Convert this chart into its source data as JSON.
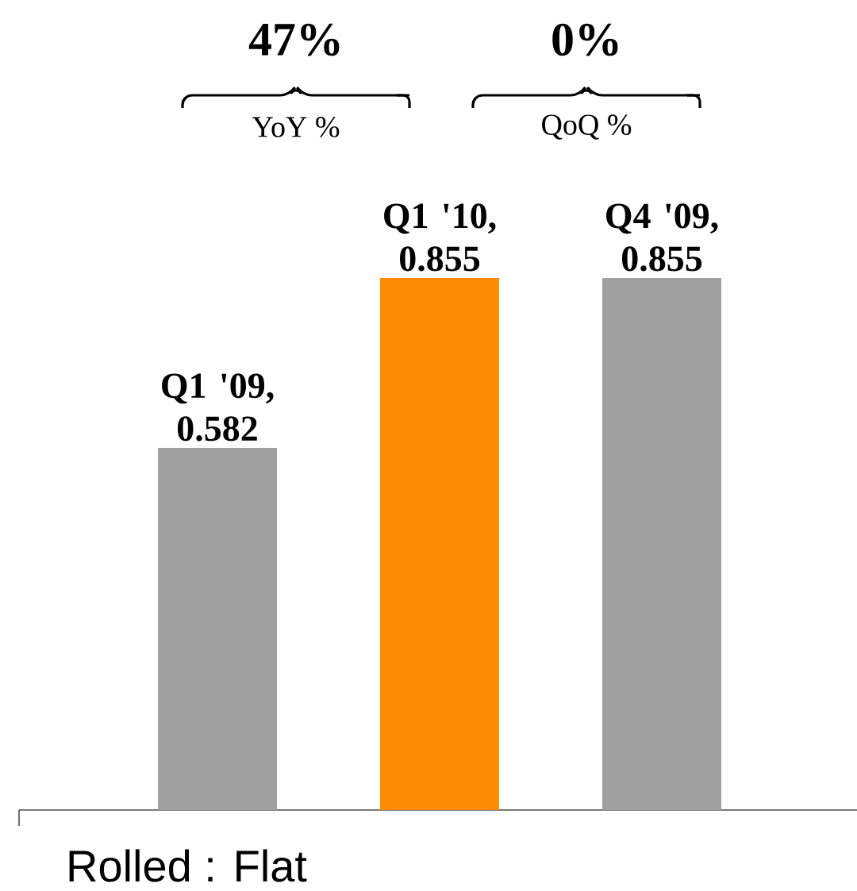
{
  "chart_data": {
    "type": "bar",
    "categories": [
      null,
      null,
      null
    ],
    "value_labels": [
      "Q1 '09, 0.582",
      "Q1 '10, 0.855",
      "Q4 '09, 0.855"
    ],
    "values": [
      0.582,
      0.855,
      0.855
    ],
    "colors": [
      "#a0a0a0",
      "#ff8c00",
      "#a0a0a0"
    ],
    "annotations": [
      "47%",
      "YoY %",
      "0%",
      "QoQ %",
      "Rolled : Flat"
    ]
  }
}
